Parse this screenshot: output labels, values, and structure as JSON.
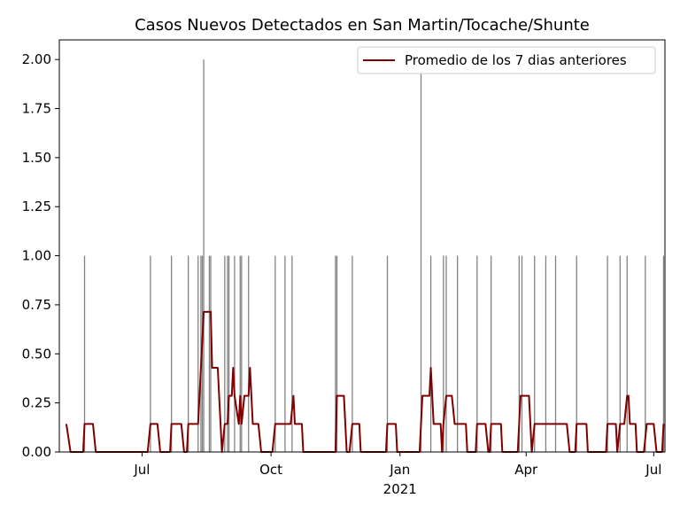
{
  "chart_data": {
    "type": "bar",
    "title": "Casos Nuevos Detectados en San Martin/Tocache/Shunte",
    "xlim": [
      "2020-05-03",
      "2021-07-09"
    ],
    "xticks": [
      {
        "value": "2020-07-01",
        "label": "Jul"
      },
      {
        "value": "2020-10-01",
        "label": "Oct"
      },
      {
        "value": "2021-01-01",
        "label": "Jan",
        "sublabel": "2021"
      },
      {
        "value": "2021-04-01",
        "label": "Apr"
      },
      {
        "value": "2021-07-01",
        "label": "Jul"
      }
    ],
    "ylim": [
      0,
      2.1
    ],
    "yticks": [
      {
        "value": 0,
        "label": "0.00"
      },
      {
        "value": 0.25,
        "label": "0.25"
      },
      {
        "value": 0.5,
        "label": "0.50"
      },
      {
        "value": 0.75,
        "label": "0.75"
      },
      {
        "value": 1,
        "label": "1.00"
      },
      {
        "value": 1.25,
        "label": "1.25"
      },
      {
        "value": 1.5,
        "label": "1.50"
      },
      {
        "value": 1.75,
        "label": "1.75"
      },
      {
        "value": 2,
        "label": "2.00"
      }
    ],
    "legend": "upper right",
    "series": [
      {
        "type": "bar",
        "color": "#808080",
        "x": [
          "2020-05-21",
          "2020-07-07",
          "2020-07-22",
          "2020-08-03",
          "2020-08-10",
          "2020-08-12",
          "2020-08-13",
          "2020-08-14",
          "2020-08-18",
          "2020-08-19",
          "2020-08-29",
          "2020-08-31",
          "2020-09-01",
          "2020-09-05",
          "2020-09-09",
          "2020-09-10",
          "2020-09-15",
          "2020-10-04",
          "2020-10-11",
          "2020-10-16",
          "2020-11-16",
          "2020-11-17",
          "2020-11-28",
          "2020-12-23",
          "2021-01-16",
          "2021-01-23",
          "2021-02-01",
          "2021-02-03",
          "2021-02-11",
          "2021-02-25",
          "2021-03-07",
          "2021-03-27",
          "2021-03-29",
          "2021-04-07",
          "2021-04-15",
          "2021-04-22",
          "2021-05-07",
          "2021-05-29",
          "2021-06-07",
          "2021-06-12",
          "2021-06-25",
          "2021-07-08"
        ],
        "values": [
          1,
          1,
          1,
          1,
          1,
          1,
          1,
          2,
          1,
          1,
          1,
          1,
          1,
          1,
          1,
          1,
          1,
          1,
          1,
          1,
          1,
          1,
          1,
          1,
          2,
          1,
          1,
          1,
          1,
          1,
          1,
          1,
          1,
          1,
          1,
          1,
          1,
          1,
          1,
          1,
          1,
          1
        ]
      },
      {
        "type": "line",
        "name": "Promedio de los 7 dias anteriores",
        "color": "#800000",
        "x": [
          "2020-05-08",
          "2020-05-11",
          "2020-05-20",
          "2020-05-21",
          "2020-05-27",
          "2020-05-29",
          "2020-07-05",
          "2020-07-07",
          "2020-07-12",
          "2020-07-14",
          "2020-07-21",
          "2020-07-22",
          "2020-07-29",
          "2020-07-31",
          "2020-08-02",
          "2020-08-03",
          "2020-08-10",
          "2020-08-14",
          "2020-08-19",
          "2020-08-20",
          "2020-08-24",
          "2020-08-27",
          "2020-08-29",
          "2020-08-31",
          "2020-09-01",
          "2020-09-03",
          "2020-09-04",
          "2020-09-05",
          "2020-09-08",
          "2020-09-09",
          "2020-09-10",
          "2020-09-12",
          "2020-09-15",
          "2020-09-16",
          "2020-09-17",
          "2020-09-18",
          "2020-09-22",
          "2020-09-24",
          "2020-10-02",
          "2020-10-04",
          "2020-10-15",
          "2020-10-17",
          "2020-10-18",
          "2020-10-23",
          "2020-10-24",
          "2020-11-16",
          "2020-11-17",
          "2020-11-22",
          "2020-11-24",
          "2020-11-26",
          "2020-11-28",
          "2020-12-03",
          "2020-12-04",
          "2020-12-22",
          "2020-12-23",
          "2020-12-29",
          "2020-12-30",
          "2021-01-15",
          "2021-01-17",
          "2021-01-22",
          "2021-01-23",
          "2021-01-25",
          "2021-01-30",
          "2021-01-31",
          "2021-02-01",
          "2021-02-03",
          "2021-02-07",
          "2021-02-09",
          "2021-02-17",
          "2021-02-18",
          "2021-02-24",
          "2021-02-25",
          "2021-03-03",
          "2021-03-05",
          "2021-03-06",
          "2021-03-07",
          "2021-03-14",
          "2021-03-15",
          "2021-03-26",
          "2021-03-28",
          "2021-04-03",
          "2021-04-04",
          "2021-04-05",
          "2021-04-07",
          "2021-04-30",
          "2021-05-02",
          "2021-05-06",
          "2021-05-07",
          "2021-05-14",
          "2021-05-15",
          "2021-05-28",
          "2021-05-29",
          "2021-06-04",
          "2021-06-05",
          "2021-06-07",
          "2021-06-10",
          "2021-06-12",
          "2021-06-13",
          "2021-06-14",
          "2021-06-18",
          "2021-06-19",
          "2021-06-24",
          "2021-06-26",
          "2021-07-01",
          "2021-07-03",
          "2021-07-07",
          "2021-07-08"
        ],
        "values": [
          0.143,
          0,
          0,
          0.143,
          0.143,
          0,
          0,
          0.143,
          0.143,
          0,
          0,
          0.143,
          0.143,
          0,
          0,
          0.143,
          0.143,
          0.714,
          0.714,
          0.429,
          0.429,
          0,
          0.143,
          0.143,
          0.286,
          0.286,
          0.429,
          0.286,
          0.143,
          0.286,
          0.143,
          0.286,
          0.286,
          0.429,
          0.286,
          0.143,
          0.143,
          0,
          0,
          0.143,
          0.143,
          0.286,
          0.143,
          0.143,
          0,
          0,
          0.286,
          0.286,
          0,
          0,
          0.143,
          0.143,
          0,
          0,
          0.143,
          0.143,
          0,
          0,
          0.286,
          0.286,
          0.429,
          0.143,
          0.143,
          0,
          0.143,
          0.286,
          0.286,
          0.143,
          0.143,
          0,
          0,
          0.143,
          0.143,
          0,
          0,
          0.143,
          0.143,
          0,
          0,
          0.286,
          0.286,
          0.143,
          0,
          0.143,
          0.143,
          0,
          0,
          0.143,
          0.143,
          0,
          0,
          0.143,
          0.143,
          0,
          0.143,
          0.143,
          0.286,
          0.286,
          0.143,
          0.143,
          0,
          0,
          0.143,
          0.143,
          0,
          0,
          0.143
        ]
      }
    ]
  }
}
